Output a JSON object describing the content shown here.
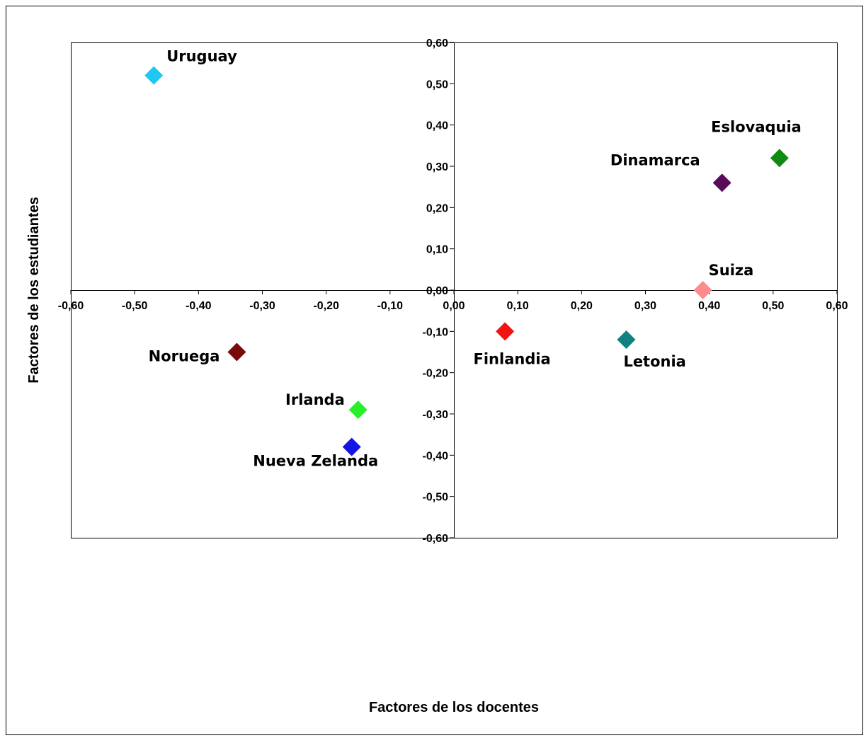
{
  "chart_data": {
    "type": "scatter",
    "title": "",
    "xlabel": "Factores de los docentes",
    "ylabel": "Factores de los estudiantes",
    "xlim": [
      -0.6,
      0.6
    ],
    "ylim": [
      -0.6,
      0.6
    ],
    "x_ticks": [
      "-0,60",
      "-0,50",
      "-0,40",
      "-0,30",
      "-0,20",
      "-0,10",
      "0,00",
      "0,10",
      "0,20",
      "0,30",
      "0,40",
      "0,50",
      "0,60"
    ],
    "y_ticks": [
      "0,60",
      "0,50",
      "0,40",
      "0,30",
      "0,20",
      "0,10",
      "0,00",
      "-0,10",
      "-0,20",
      "-0,30",
      "-0,40",
      "-0,50",
      "-0,60"
    ],
    "grid": false,
    "legend": "none",
    "points": [
      {
        "label": "Uruguay",
        "x": -0.47,
        "y": 0.52,
        "color": "#1ec8f0"
      },
      {
        "label": "Eslovaquia",
        "x": 0.51,
        "y": 0.32,
        "color": "#108a10"
      },
      {
        "label": "Dinamarca",
        "x": 0.42,
        "y": 0.26,
        "color": "#5a0a5a"
      },
      {
        "label": "Suiza",
        "x": 0.39,
        "y": 0.0,
        "color": "#ff8c8c"
      },
      {
        "label": "Finlandia",
        "x": 0.08,
        "y": -0.1,
        "color": "#f01414"
      },
      {
        "label": "Letonia",
        "x": 0.27,
        "y": -0.12,
        "color": "#108080"
      },
      {
        "label": "Noruega",
        "x": -0.34,
        "y": -0.15,
        "color": "#7a0a0a"
      },
      {
        "label": "Irlanda",
        "x": -0.15,
        "y": -0.29,
        "color": "#28f028"
      },
      {
        "label": "Nueva Zelanda",
        "x": -0.16,
        "y": -0.38,
        "color": "#1414e6"
      }
    ]
  }
}
